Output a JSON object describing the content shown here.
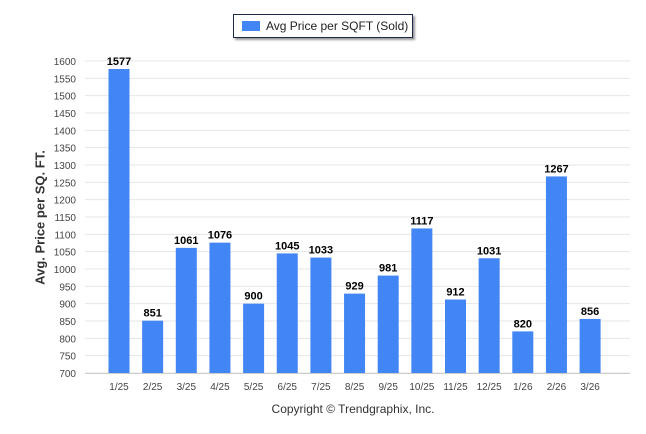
{
  "chart_data": {
    "type": "bar",
    "legend": "Avg Price per SQFT (Sold)",
    "legend_position": "top-center",
    "ylabel": "Avg. Price per SQ. FT.",
    "xlabel": "",
    "ylim": [
      700,
      1600
    ],
    "yticks": [
      700,
      750,
      800,
      850,
      900,
      950,
      1000,
      1050,
      1100,
      1150,
      1200,
      1250,
      1300,
      1350,
      1400,
      1450,
      1500,
      1550,
      1600
    ],
    "grid": true,
    "categories": [
      "1/25",
      "2/25",
      "3/25",
      "4/25",
      "5/25",
      "6/25",
      "7/25",
      "8/25",
      "9/25",
      "10/25",
      "11/25",
      "12/25",
      "1/26",
      "2/26",
      "3/26"
    ],
    "values": [
      1577,
      851,
      1061,
      1076,
      900,
      1045,
      1033,
      929,
      981,
      1117,
      912,
      1031,
      820,
      1267,
      856
    ],
    "color": "#4285f4"
  },
  "footer": "Copyright © Trendgraphix, Inc."
}
